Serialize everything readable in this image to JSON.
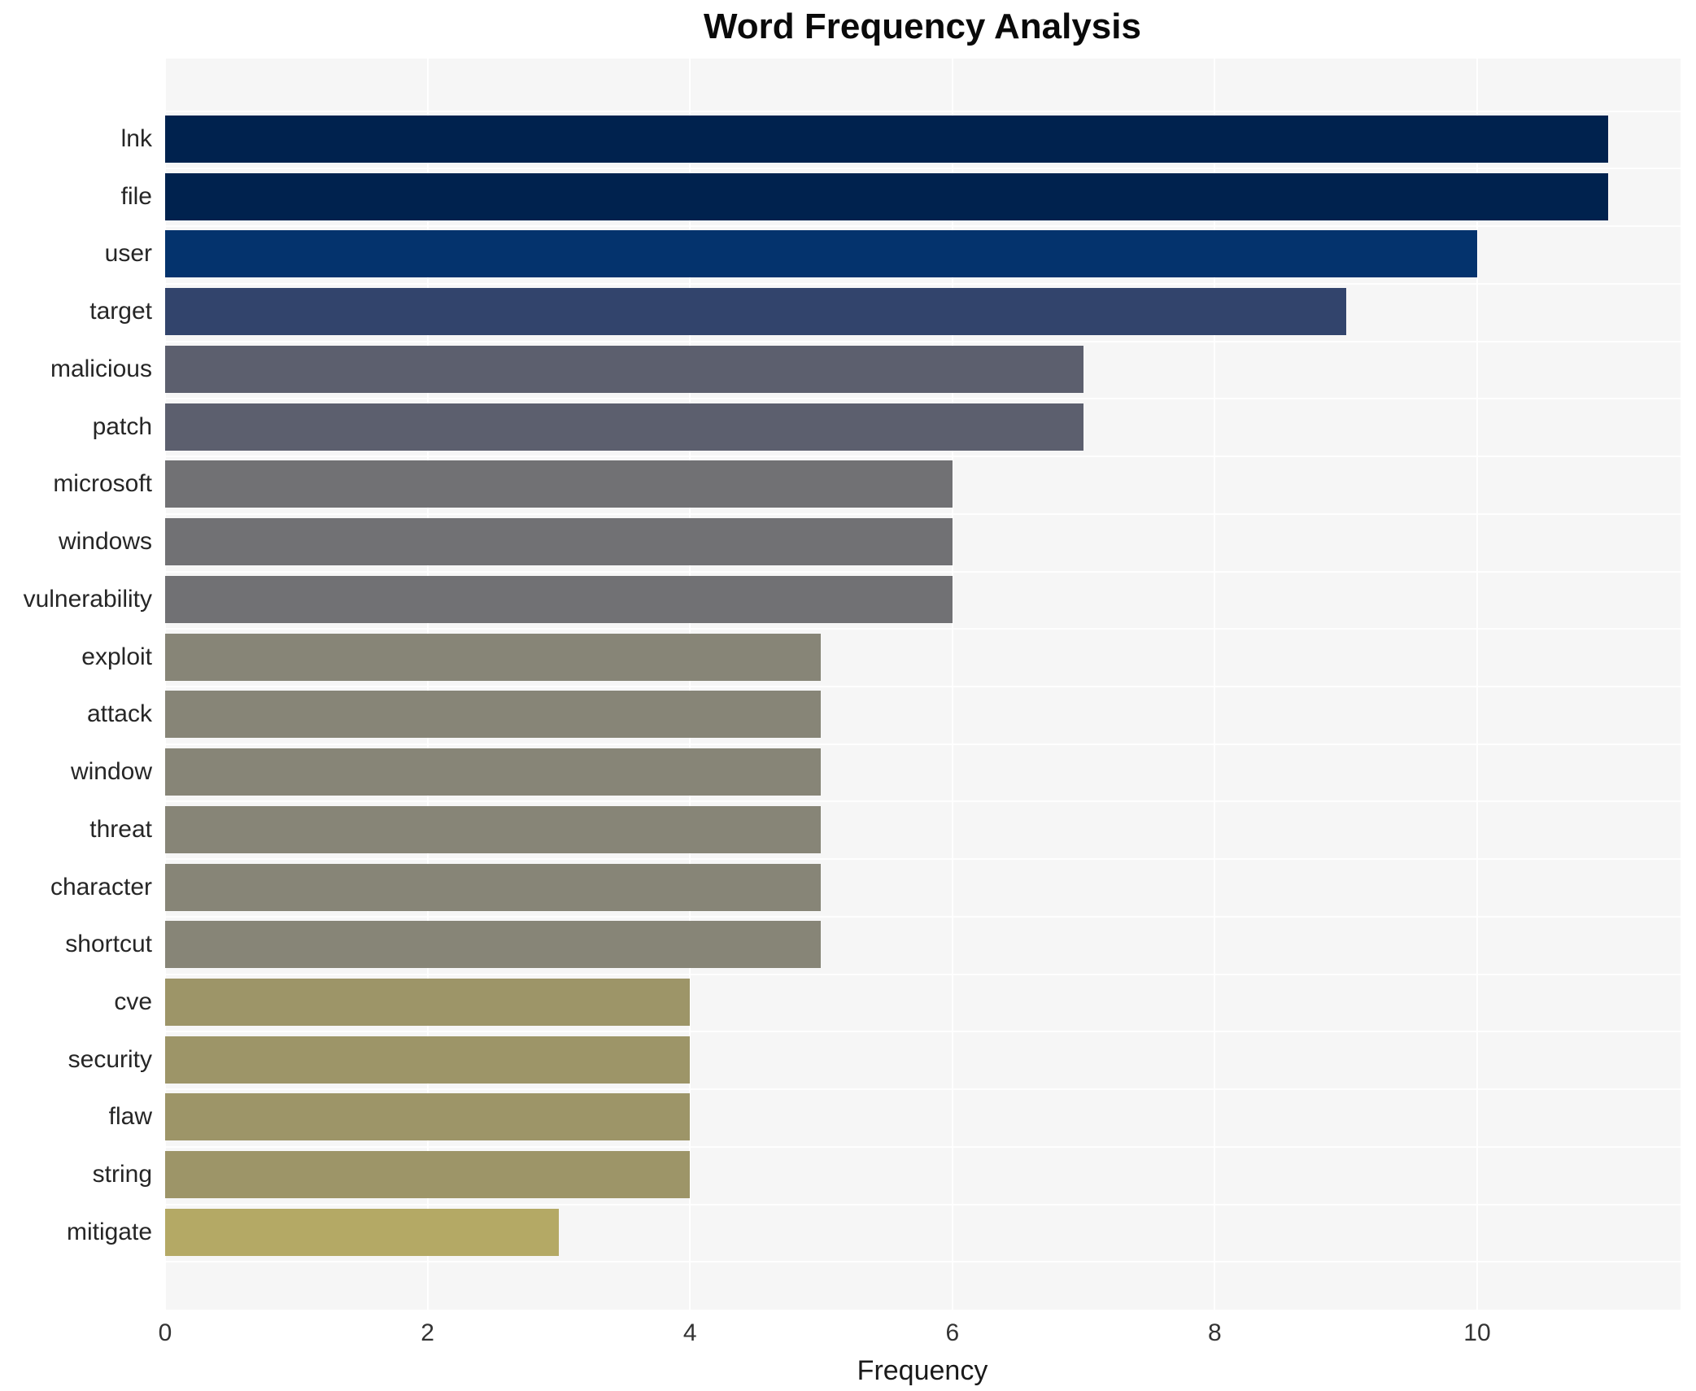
{
  "chart_data": {
    "type": "bar",
    "orientation": "horizontal",
    "title": "Word Frequency Analysis",
    "xlabel": "Frequency",
    "ylabel": "",
    "categories": [
      "lnk",
      "file",
      "user",
      "target",
      "malicious",
      "patch",
      "microsoft",
      "windows",
      "vulnerability",
      "exploit",
      "attack",
      "window",
      "threat",
      "character",
      "shortcut",
      "cve",
      "security",
      "flaw",
      "string",
      "mitigate"
    ],
    "values": [
      11,
      11,
      10,
      9,
      7,
      7,
      6,
      6,
      6,
      5,
      5,
      5,
      5,
      5,
      5,
      4,
      4,
      4,
      4,
      3
    ],
    "bar_colors": [
      "#00224e",
      "#00224e",
      "#04336d",
      "#32446c",
      "#5c5f6e",
      "#5c5f6e",
      "#717174",
      "#717174",
      "#717174",
      "#878577",
      "#878577",
      "#878577",
      "#878577",
      "#878577",
      "#878577",
      "#9d9568",
      "#9d9568",
      "#9d9568",
      "#9d9568",
      "#b4a965"
    ],
    "xticks": [
      0,
      2,
      4,
      6,
      8,
      10
    ],
    "xlim": [
      0,
      11.55
    ],
    "grid": true,
    "legend": null,
    "plot_background": "#f6f6f6",
    "grid_color": "#ffffff",
    "figure_background": "#ffffff"
  }
}
